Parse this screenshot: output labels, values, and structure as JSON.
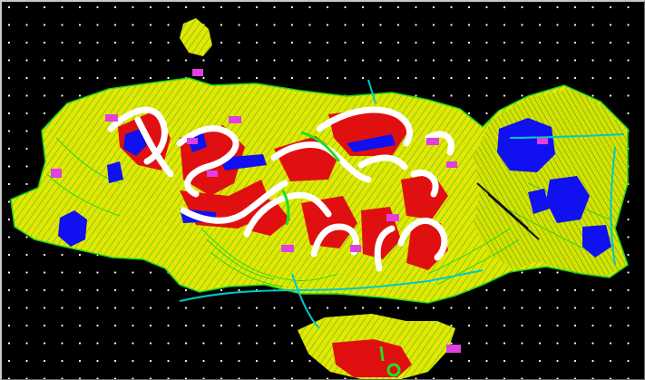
{
  "viewport": {
    "name": "cad-model-space",
    "background_color": "#000000",
    "grid_dots_visible": true,
    "grid_color": "#ffffff"
  },
  "layers": {
    "terrain_fill": {
      "color": "#e8e800",
      "icon": "contour-hatch"
    },
    "contour_lines": {
      "color": "#1fd41f"
    },
    "cut_fill": {
      "color": "#e01010"
    },
    "water": {
      "color": "#1010f0"
    },
    "boundary": {
      "color": "#ffffff"
    },
    "roads": {
      "color": "#00c8c8"
    },
    "annotation_tags": {
      "color": "#e040e0"
    }
  }
}
